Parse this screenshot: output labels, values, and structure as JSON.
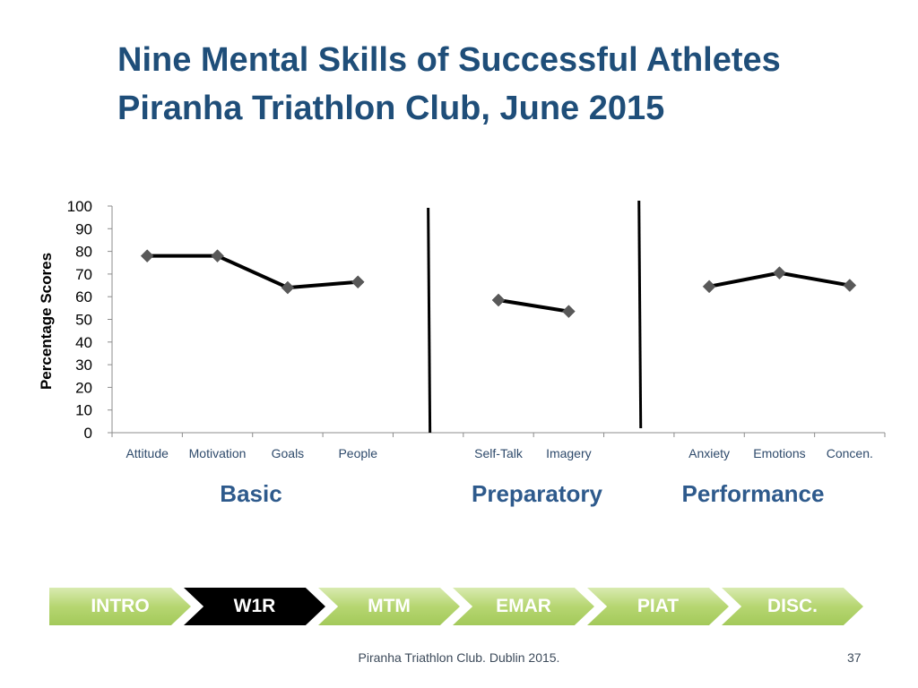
{
  "slide": {
    "title_line1": "Nine Mental Skills of Successful Athletes",
    "title_line2": "Piranha Triathlon Club, June 2015",
    "footer": "Piranha Triathlon Club. Dublin 2015.",
    "page_number": "37"
  },
  "chart_data": {
    "type": "line",
    "title": "",
    "xlabel": "",
    "ylabel": "Percentage Scores",
    "ylim": [
      0,
      100
    ],
    "yticks": [
      0,
      10,
      20,
      30,
      40,
      50,
      60,
      70,
      80,
      90,
      100
    ],
    "grid": false,
    "categories": [
      "Attitude",
      "Motivation",
      "Goals",
      "People",
      "",
      "Self-Talk",
      "Imagery",
      "",
      "Anxiety",
      "Emotions",
      "Concen."
    ],
    "segments": [
      {
        "category_indices": [
          0,
          1,
          2,
          3
        ],
        "values": [
          78,
          78,
          64,
          66.5
        ]
      },
      {
        "category_indices": [
          5,
          6
        ],
        "values": [
          58.5,
          53.5
        ]
      },
      {
        "category_indices": [
          8,
          9,
          10
        ],
        "values": [
          64.5,
          70.5,
          65
        ]
      }
    ],
    "dividers_after": [
      4,
      7
    ],
    "groups": [
      {
        "label": "Basic"
      },
      {
        "label": "Preparatory"
      },
      {
        "label": "Performance"
      }
    ],
    "colors": {
      "line": "#000000",
      "marker": "#595959",
      "axis": "#8c8c8c",
      "group_label": "#2e5a8c",
      "tick_label": "#2e4a6b"
    }
  },
  "nav": {
    "steps": [
      {
        "label": "INTRO",
        "active": false
      },
      {
        "label": "W1R",
        "active": true
      },
      {
        "label": "MTM",
        "active": false
      },
      {
        "label": "EMAR",
        "active": false
      },
      {
        "label": "PIAT",
        "active": false
      },
      {
        "label": "DISC.",
        "active": false
      }
    ]
  }
}
